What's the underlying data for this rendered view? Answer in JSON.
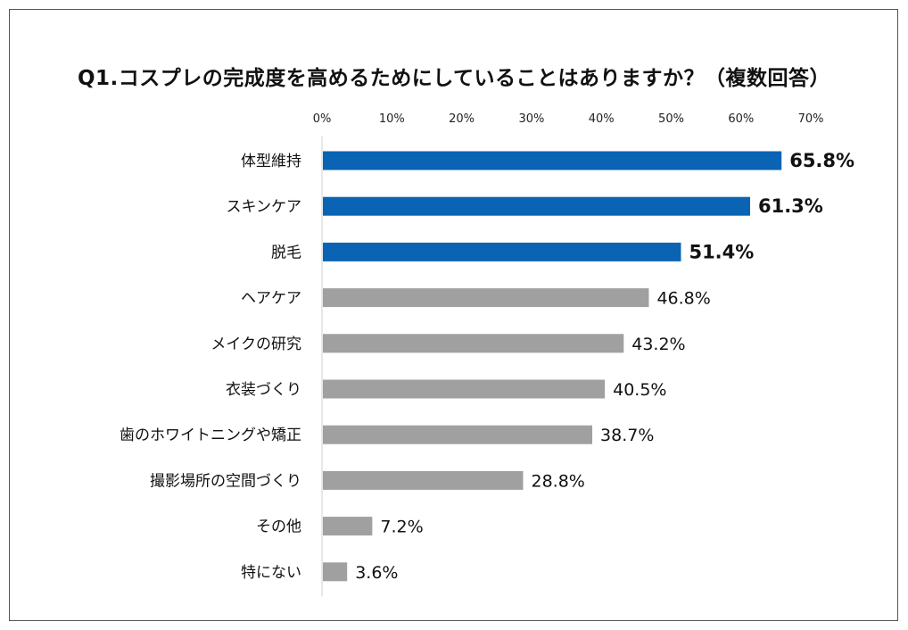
{
  "chart_data": {
    "type": "bar",
    "orientation": "horizontal",
    "title": "Q1.コスプレの完成度を高めるためにしていることはありますか？（複数回答）",
    "x_ticks": [
      "0%",
      "10%",
      "20%",
      "30%",
      "40%",
      "50%",
      "60%",
      "70%"
    ],
    "xlim": [
      0,
      70
    ],
    "categories": [
      "体型維持",
      "スキンケア",
      "脱毛",
      "ヘアケア",
      "メイクの研究",
      "衣装づくり",
      "歯のホワイトニングや矯正",
      "撮影場所の空間づくり",
      "その他",
      "特にない"
    ],
    "values": [
      65.8,
      61.3,
      51.4,
      46.8,
      43.2,
      40.5,
      38.7,
      28.8,
      7.2,
      3.6
    ],
    "value_labels": [
      "65.8%",
      "61.3%",
      "51.4%",
      "46.8%",
      "43.2%",
      "40.5%",
      "38.7%",
      "28.8%",
      "7.2%",
      "3.6%"
    ],
    "highlighted": [
      true,
      true,
      true,
      false,
      false,
      false,
      false,
      false,
      false,
      false
    ],
    "colors": {
      "highlight": "#0a63b3",
      "default": "#a0a0a0",
      "axis": "#d0d0d0"
    },
    "grid": false,
    "legend": "none"
  }
}
